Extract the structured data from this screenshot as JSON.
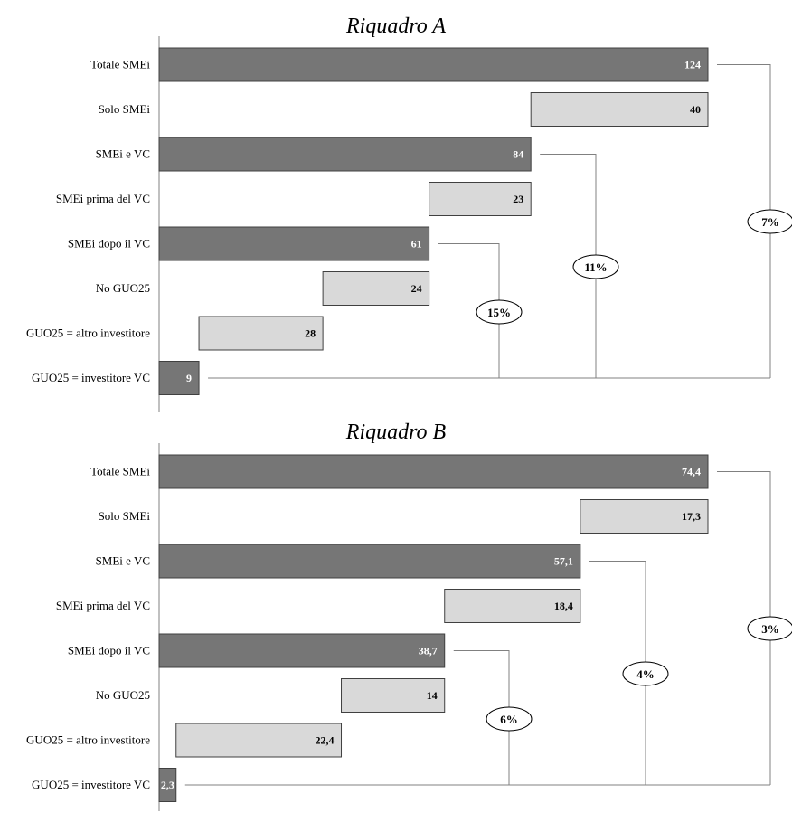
{
  "chart_data": [
    {
      "type": "bar",
      "title": "Riquadro A",
      "categories": [
        "Totale SMEi",
        "Solo SMEi",
        "SMEi e VC",
        "SMEi prima del VC",
        "SMEi dopo il VC",
        "No GUO25",
        "GUO25 = altro investitore",
        "GUO25 = investitore VC"
      ],
      "values": [
        124,
        40,
        84,
        23,
        61,
        24,
        28,
        9
      ],
      "value_labels": [
        "124",
        "40",
        "84",
        "23",
        "61",
        "24",
        "28",
        "9"
      ],
      "bar_style": [
        "total",
        "segment",
        "total",
        "segment",
        "total",
        "segment",
        "segment",
        "total"
      ],
      "percentages": [
        {
          "from_category": "SMEi dopo il VC",
          "label": "15%"
        },
        {
          "from_category": "SMEi e VC",
          "label": "11%"
        },
        {
          "from_category": "Totale SMEi",
          "label": "7%"
        }
      ]
    },
    {
      "type": "bar",
      "title": "Riquadro B",
      "categories": [
        "Totale SMEi",
        "Solo SMEi",
        "SMEi e VC",
        "SMEi prima del VC",
        "SMEi dopo il VC",
        "No GUO25",
        "GUO25 = altro investitore",
        "GUO25 = investitore VC"
      ],
      "values": [
        74.4,
        17.3,
        57.1,
        18.4,
        38.7,
        14,
        22.4,
        2.3
      ],
      "value_labels": [
        "74,4",
        "17,3",
        "57,1",
        "18,4",
        "38,7",
        "14",
        "22,4",
        "2,3"
      ],
      "bar_style": [
        "total",
        "segment",
        "total",
        "segment",
        "total",
        "segment",
        "segment",
        "total"
      ],
      "percentages": [
        {
          "from_category": "SMEi dopo il VC",
          "label": "6%"
        },
        {
          "from_category": "SMEi e VC",
          "label": "4%"
        },
        {
          "from_category": "Totale SMEi",
          "label": "3%"
        }
      ]
    }
  ],
  "colors": {
    "total_fill": "#767676",
    "segment_fill": "#d9d9d9",
    "bar_stroke": "#404040",
    "axis": "#808080",
    "connector": "#808080"
  }
}
